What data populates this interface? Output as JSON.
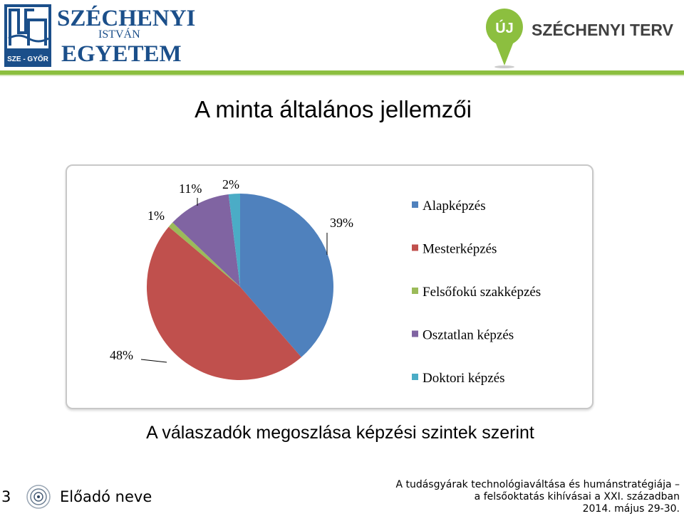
{
  "header": {
    "left_logo": {
      "line1": "SZÉCHENYI",
      "line2": "ISTVÁN",
      "line3": "EGYETEM",
      "badge": "SZE - GYŐR"
    },
    "right_logo": {
      "prefix": "ÚJ",
      "name": "SZÉCHENYI TERV"
    },
    "accent_color": "#8cbf3f"
  },
  "slide_title": "A minta általános jellemzői",
  "chart_data": {
    "type": "pie",
    "categories": [
      "Alapképzés",
      "Mesterképzés",
      "Felsőfokú szakképzés",
      "Osztatlan képzés",
      "Doktori képzés"
    ],
    "values": [
      39,
      48,
      1,
      11,
      2
    ],
    "labels": [
      "39%",
      "48%",
      "1%",
      "11%",
      "2%"
    ],
    "colors": [
      "#4f81bd",
      "#c0504d",
      "#9bbb59",
      "#8064a2",
      "#4bacc6"
    ],
    "legend_position": "right"
  },
  "caption": "A válaszadók megoszlása képzési szintek szerint",
  "footer": {
    "page_number": "3",
    "presenter": "Előadó neve",
    "line1": "A tudásgyárak technológiaváltása és humánstratégiája –",
    "line2": "a felsőoktatás kihívásai a XXI. században",
    "line3": "2014. május 29-30."
  }
}
